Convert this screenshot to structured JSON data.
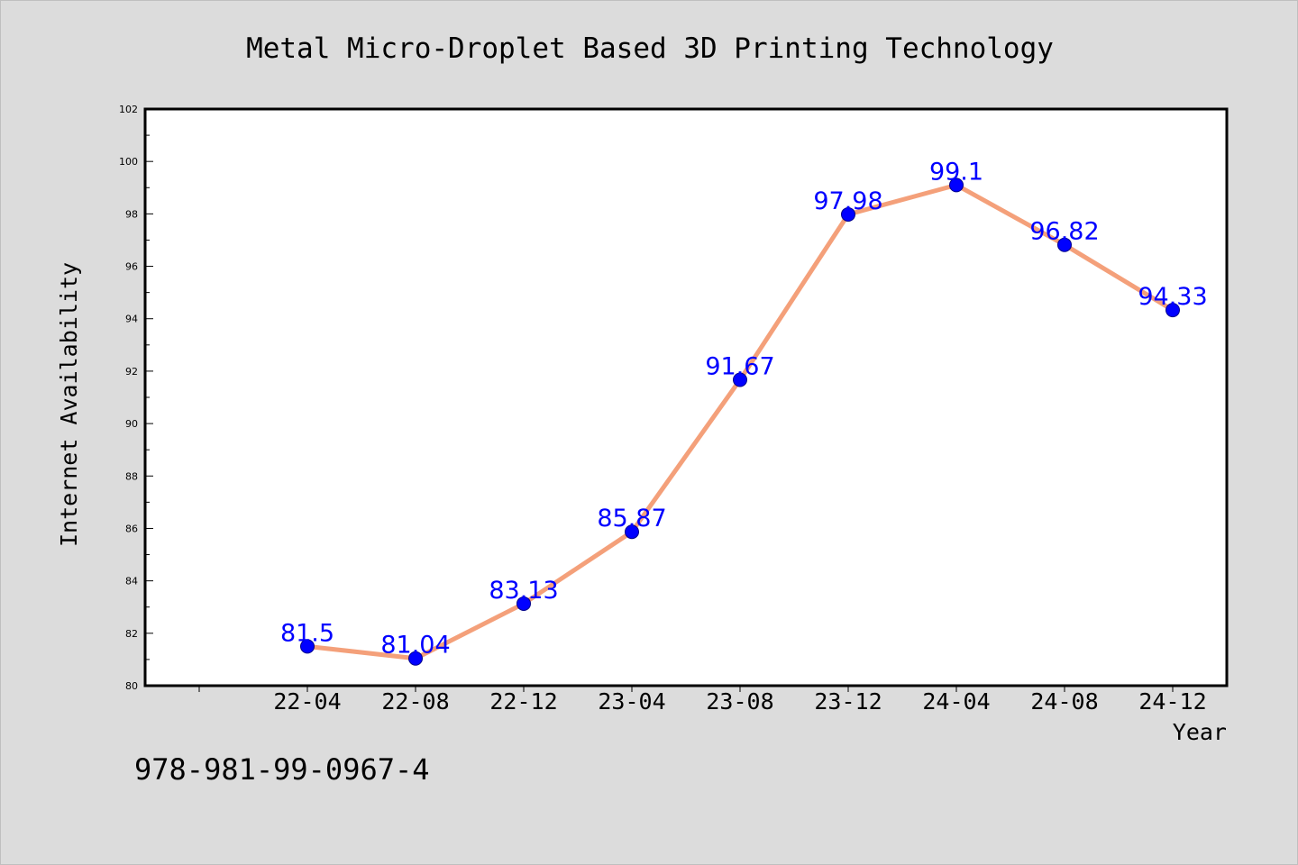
{
  "chart_data": {
    "type": "line",
    "title": "Metal Micro-Droplet Based 3D Printing Technology",
    "xlabel": "Year",
    "ylabel": "Internet Availability",
    "categories": [
      "22-04",
      "22-08",
      "22-12",
      "23-04",
      "23-08",
      "23-12",
      "24-04",
      "24-08",
      "24-12"
    ],
    "values": [
      81.5,
      81.04,
      83.13,
      85.87,
      91.67,
      97.98,
      99.1,
      96.82,
      94.33
    ],
    "data_labels": [
      "81.5",
      "81.04",
      "83.13",
      "85.87",
      "91.67",
      "97.98",
      "99.1",
      "96.82",
      "94.33"
    ],
    "ylim": [
      80,
      102
    ],
    "yticks": [
      "80",
      "82",
      "84",
      "86",
      "88",
      "90",
      "92",
      "94",
      "96",
      "98",
      "100",
      "102"
    ],
    "grid": false,
    "legend": "none",
    "colors": {
      "line": "#f4a07a",
      "marker": "#0000ff",
      "data_label": "#0000ff",
      "plot_background": "#ffffff",
      "page_background": "#dcdcdc"
    }
  },
  "footer_text": "978-981-99-0967-4"
}
